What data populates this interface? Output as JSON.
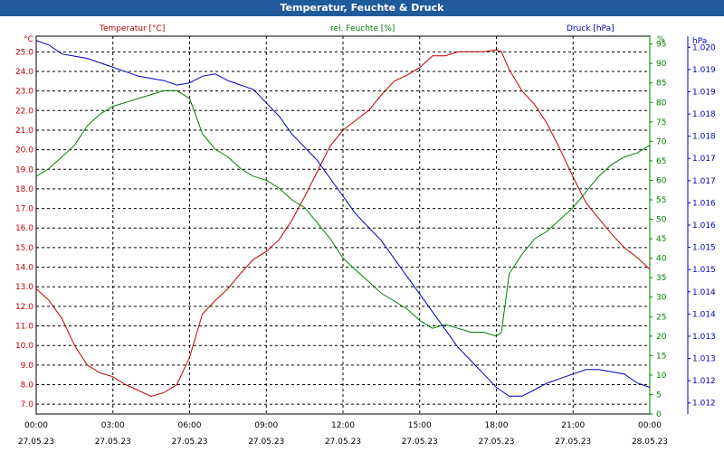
{
  "chart_data": {
    "type": "line",
    "title": "Temperatur, Feuchte & Druck",
    "x_ticks": [
      {
        "time": "00:00",
        "date": "27.05.23"
      },
      {
        "time": "03:00",
        "date": "27.05.23"
      },
      {
        "time": "06:00",
        "date": "27.05.23"
      },
      {
        "time": "09:00",
        "date": "27.05.23"
      },
      {
        "time": "12:00",
        "date": "27.05.23"
      },
      {
        "time": "15:00",
        "date": "27.05.23"
      },
      {
        "time": "18:00",
        "date": "27.05.23"
      },
      {
        "time": "21:00",
        "date": "27.05.23"
      },
      {
        "time": "00:00",
        "date": "28.05.23"
      }
    ],
    "xlim": [
      0,
      24
    ],
    "axes": {
      "temperature": {
        "label": "Temperatur [°C]",
        "unit": "°C",
        "color": "#c00000",
        "ylim": [
          6.5,
          25.8
        ],
        "ticks": [
          "7.0",
          "8.0",
          "9.0",
          "10.0",
          "11.0",
          "12.0",
          "13.0",
          "14.0",
          "15.0",
          "16.0",
          "17.0",
          "18.0",
          "19.0",
          "20.0",
          "21.0",
          "22.0",
          "23.0",
          "24.0",
          "25.0"
        ]
      },
      "humidity": {
        "label": "rel. Feuchte [%]",
        "unit": "%",
        "color": "#008000",
        "ylim": [
          0,
          97
        ],
        "ticks": [
          "0",
          "5",
          "10",
          "15",
          "20",
          "25",
          "30",
          "35",
          "40",
          "45",
          "50",
          "55",
          "60",
          "65",
          "70",
          "75",
          "80",
          "85",
          "90",
          "95"
        ]
      },
      "pressure": {
        "label": "Druck [hPa]",
        "unit": "hPa",
        "color": "#0000c0",
        "ylim": [
          1011.6,
          1020.1
        ],
        "ticks": [
          "1.012",
          "1.012",
          "1.013",
          "1.013",
          "1.014",
          "1.014",
          "1.015",
          "1.015",
          "1.016",
          "1.016",
          "1.017",
          "1.017",
          "1.018",
          "1.018",
          "1.019",
          "1.019",
          "1.020"
        ]
      }
    },
    "series": [
      {
        "name": "Temperatur",
        "axis": "temperature",
        "color": "#c00000",
        "x": [
          0,
          0.5,
          1,
          1.5,
          2,
          2.5,
          3,
          3.5,
          4,
          4.5,
          5,
          5.5,
          6,
          6.5,
          7,
          7.5,
          8,
          8.5,
          9,
          9.5,
          10,
          10.5,
          11,
          11.5,
          12,
          12.5,
          13,
          13.5,
          14,
          14.5,
          15,
          15.5,
          16,
          16.5,
          17,
          17.5,
          18,
          18.2,
          18.5,
          19,
          19.5,
          20,
          20.5,
          21,
          21.5,
          22,
          22.5,
          23,
          23.5,
          24
        ],
        "y": [
          12.9,
          12.3,
          11.4,
          10.0,
          9.0,
          8.6,
          8.4,
          8.0,
          7.7,
          7.4,
          7.6,
          8.0,
          9.4,
          11.6,
          12.3,
          12.9,
          13.7,
          14.4,
          14.8,
          15.4,
          16.4,
          17.6,
          18.9,
          20.2,
          21.0,
          21.5,
          22.0,
          22.8,
          23.5,
          23.8,
          24.2,
          24.8,
          24.8,
          25.0,
          25.0,
          25.0,
          25.1,
          25.0,
          24.1,
          23.0,
          22.3,
          21.3,
          20.0,
          18.6,
          17.3,
          16.5,
          15.7,
          15.0,
          14.5,
          13.9
        ]
      },
      {
        "name": "rel. Feuchte",
        "axis": "humidity",
        "color": "#008000",
        "x": [
          0,
          0.5,
          1,
          1.5,
          2,
          2.5,
          3,
          3.5,
          4,
          4.5,
          5,
          5.5,
          6,
          6.5,
          7,
          7.5,
          8,
          8.5,
          9,
          9.5,
          10,
          10.5,
          11,
          11.5,
          12,
          12.5,
          13,
          13.5,
          14,
          14.5,
          15,
          15.5,
          16,
          16.5,
          17,
          17.5,
          18,
          18.2,
          18.5,
          19,
          19.5,
          20,
          20.5,
          21,
          21.5,
          22,
          22.5,
          23,
          23.5,
          24
        ],
        "y": [
          61,
          63,
          66,
          69,
          74,
          77,
          79,
          80,
          81,
          82,
          83,
          83,
          81,
          72,
          68,
          66,
          63,
          61,
          60,
          58,
          55,
          53,
          49,
          45,
          40,
          37,
          34,
          31,
          29,
          27,
          24,
          22,
          23,
          22,
          21,
          21,
          20,
          21,
          36,
          41,
          45,
          47,
          50,
          53,
          57,
          61,
          64,
          66,
          67,
          69
        ]
      },
      {
        "name": "Druck",
        "axis": "pressure",
        "color": "#0000c0",
        "x": [
          0,
          0.5,
          1,
          1.5,
          2,
          2.5,
          3,
          3.5,
          4,
          4.5,
          5,
          5.5,
          6,
          6.5,
          7,
          7.5,
          8,
          8.5,
          9,
          9.5,
          10,
          10.5,
          11,
          11.5,
          12,
          12.5,
          13,
          13.5,
          14,
          14.5,
          15,
          15.5,
          16,
          16.5,
          17,
          17.5,
          18,
          18.5,
          19,
          19.5,
          20,
          20.5,
          21,
          21.5,
          22,
          22.5,
          23,
          23.5,
          24
        ],
        "y": [
          1020.0,
          1019.9,
          1019.7,
          1019.65,
          1019.6,
          1019.5,
          1019.4,
          1019.3,
          1019.2,
          1019.15,
          1019.1,
          1019.0,
          1019.05,
          1019.2,
          1019.25,
          1019.1,
          1019.0,
          1018.9,
          1018.6,
          1018.3,
          1017.9,
          1017.6,
          1017.3,
          1016.9,
          1016.5,
          1016.1,
          1015.8,
          1015.5,
          1015.1,
          1014.7,
          1014.3,
          1013.9,
          1013.5,
          1013.1,
          1012.8,
          1012.5,
          1012.2,
          1012.0,
          1012.0,
          1012.15,
          1012.3,
          1012.4,
          1012.5,
          1012.6,
          1012.6,
          1012.55,
          1012.5,
          1012.3,
          1012.2
        ]
      }
    ]
  }
}
